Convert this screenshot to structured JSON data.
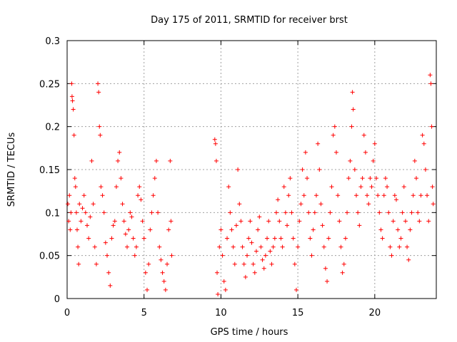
{
  "chart_data": {
    "type": "scatter",
    "title": "Day 175 of 2011, SRMTID for receiver brst",
    "xlabel": "GPS time / hours",
    "ylabel": "SRMTID / TECUs",
    "xlim": [
      0,
      24
    ],
    "ylim": [
      0,
      0.3
    ],
    "grid": true,
    "marker": "+",
    "marker_color": "#ff0000",
    "x_ticks": [
      0,
      5,
      10,
      15,
      20
    ],
    "x_tick_labels": [
      "0",
      "5",
      "10",
      "15",
      "20"
    ],
    "y_ticks": [
      0,
      0.05,
      0.1,
      0.15,
      0.2,
      0.25,
      0.3
    ],
    "y_tick_labels": [
      "0",
      "0.05",
      "0.1",
      "0.15",
      "0.2",
      "0.25",
      "0.3"
    ],
    "series": [
      {
        "name": "SRMTID",
        "points": [
          [
            0.05,
            0.11
          ],
          [
            0.1,
            0.09
          ],
          [
            0.15,
            0.12
          ],
          [
            0.2,
            0.08
          ],
          [
            0.25,
            0.1
          ],
          [
            0.3,
            0.25
          ],
          [
            0.32,
            0.235
          ],
          [
            0.35,
            0.23
          ],
          [
            0.4,
            0.22
          ],
          [
            0.45,
            0.19
          ],
          [
            0.5,
            0.14
          ],
          [
            0.55,
            0.13
          ],
          [
            0.6,
            0.1
          ],
          [
            0.65,
            0.08
          ],
          [
            0.7,
            0.06
          ],
          [
            0.75,
            0.04
          ],
          [
            0.8,
            0.11
          ],
          [
            0.9,
            0.09
          ],
          [
            1.0,
            0.105
          ],
          [
            1.1,
            0.12
          ],
          [
            1.2,
            0.1
          ],
          [
            1.3,
            0.085
          ],
          [
            1.4,
            0.07
          ],
          [
            1.5,
            0.095
          ],
          [
            1.6,
            0.16
          ],
          [
            1.7,
            0.11
          ],
          [
            1.8,
            0.06
          ],
          [
            1.9,
            0.04
          ],
          [
            2.0,
            0.25
          ],
          [
            2.05,
            0.24
          ],
          [
            2.1,
            0.2
          ],
          [
            2.15,
            0.19
          ],
          [
            2.2,
            0.13
          ],
          [
            2.3,
            0.12
          ],
          [
            2.4,
            0.1
          ],
          [
            2.5,
            0.065
          ],
          [
            2.6,
            0.05
          ],
          [
            2.7,
            0.03
          ],
          [
            2.8,
            0.015
          ],
          [
            2.9,
            0.07
          ],
          [
            3.0,
            0.085
          ],
          [
            3.1,
            0.09
          ],
          [
            3.2,
            0.13
          ],
          [
            3.3,
            0.16
          ],
          [
            3.4,
            0.17
          ],
          [
            3.5,
            0.14
          ],
          [
            3.6,
            0.11
          ],
          [
            3.7,
            0.09
          ],
          [
            3.8,
            0.075
          ],
          [
            3.9,
            0.06
          ],
          [
            4.0,
            0.08
          ],
          [
            4.1,
            0.1
          ],
          [
            4.2,
            0.095
          ],
          [
            4.3,
            0.07
          ],
          [
            4.4,
            0.05
          ],
          [
            4.5,
            0.06
          ],
          [
            4.6,
            0.12
          ],
          [
            4.7,
            0.13
          ],
          [
            4.8,
            0.115
          ],
          [
            4.9,
            0.09
          ],
          [
            5.0,
            0.07
          ],
          [
            5.1,
            0.03
          ],
          [
            5.2,
            0.01
          ],
          [
            5.3,
            0.04
          ],
          [
            5.4,
            0.08
          ],
          [
            5.5,
            0.1
          ],
          [
            5.6,
            0.12
          ],
          [
            5.7,
            0.14
          ],
          [
            5.8,
            0.16
          ],
          [
            5.9,
            0.1
          ],
          [
            6.0,
            0.06
          ],
          [
            6.1,
            0.045
          ],
          [
            6.2,
            0.03
          ],
          [
            6.3,
            0.02
          ],
          [
            6.4,
            0.01
          ],
          [
            6.5,
            0.04
          ],
          [
            6.6,
            0.08
          ],
          [
            6.7,
            0.16
          ],
          [
            6.75,
            0.09
          ],
          [
            6.8,
            0.05
          ],
          [
            9.6,
            0.185
          ],
          [
            9.65,
            0.18
          ],
          [
            9.7,
            0.16
          ],
          [
            9.75,
            0.03
          ],
          [
            9.8,
            0.005
          ],
          [
            9.9,
            0.06
          ],
          [
            10.0,
            0.08
          ],
          [
            10.1,
            0.05
          ],
          [
            10.2,
            0.02
          ],
          [
            10.3,
            0.01
          ],
          [
            10.4,
            0.07
          ],
          [
            10.5,
            0.13
          ],
          [
            10.6,
            0.1
          ],
          [
            10.7,
            0.08
          ],
          [
            10.8,
            0.06
          ],
          [
            10.9,
            0.04
          ],
          [
            11.0,
            0.085
          ],
          [
            11.1,
            0.15
          ],
          [
            11.2,
            0.11
          ],
          [
            11.3,
            0.09
          ],
          [
            11.4,
            0.06
          ],
          [
            11.5,
            0.04
          ],
          [
            11.6,
            0.025
          ],
          [
            11.7,
            0.05
          ],
          [
            11.8,
            0.07
          ],
          [
            11.9,
            0.09
          ],
          [
            12.0,
            0.065
          ],
          [
            12.1,
            0.04
          ],
          [
            12.2,
            0.03
          ],
          [
            12.3,
            0.055
          ],
          [
            12.4,
            0.08
          ],
          [
            12.5,
            0.095
          ],
          [
            12.6,
            0.06
          ],
          [
            12.7,
            0.045
          ],
          [
            12.8,
            0.035
          ],
          [
            12.9,
            0.05
          ],
          [
            13.0,
            0.07
          ],
          [
            13.1,
            0.09
          ],
          [
            13.2,
            0.055
          ],
          [
            13.3,
            0.04
          ],
          [
            13.4,
            0.06
          ],
          [
            13.5,
            0.07
          ],
          [
            13.6,
            0.1
          ],
          [
            13.7,
            0.115
          ],
          [
            13.8,
            0.09
          ],
          [
            13.9,
            0.07
          ],
          [
            14.0,
            0.06
          ],
          [
            14.1,
            0.13
          ],
          [
            14.2,
            0.1
          ],
          [
            14.3,
            0.085
          ],
          [
            14.4,
            0.12
          ],
          [
            14.5,
            0.14
          ],
          [
            14.6,
            0.1
          ],
          [
            14.7,
            0.07
          ],
          [
            14.8,
            0.04
          ],
          [
            14.9,
            0.01
          ],
          [
            15.0,
            0.06
          ],
          [
            15.1,
            0.09
          ],
          [
            15.2,
            0.11
          ],
          [
            15.3,
            0.15
          ],
          [
            15.4,
            0.12
          ],
          [
            15.5,
            0.17
          ],
          [
            15.6,
            0.14
          ],
          [
            15.7,
            0.1
          ],
          [
            15.8,
            0.07
          ],
          [
            15.9,
            0.05
          ],
          [
            16.0,
            0.08
          ],
          [
            16.1,
            0.1
          ],
          [
            16.2,
            0.12
          ],
          [
            16.3,
            0.18
          ],
          [
            16.4,
            0.15
          ],
          [
            16.5,
            0.11
          ],
          [
            16.6,
            0.085
          ],
          [
            16.7,
            0.06
          ],
          [
            16.8,
            0.035
          ],
          [
            16.9,
            0.02
          ],
          [
            17.0,
            0.07
          ],
          [
            17.1,
            0.1
          ],
          [
            17.2,
            0.13
          ],
          [
            17.3,
            0.19
          ],
          [
            17.4,
            0.2
          ],
          [
            17.5,
            0.17
          ],
          [
            17.6,
            0.12
          ],
          [
            17.7,
            0.09
          ],
          [
            17.8,
            0.06
          ],
          [
            17.9,
            0.03
          ],
          [
            18.0,
            0.04
          ],
          [
            18.1,
            0.07
          ],
          [
            18.2,
            0.1
          ],
          [
            18.3,
            0.14
          ],
          [
            18.4,
            0.16
          ],
          [
            18.5,
            0.2
          ],
          [
            18.55,
            0.24
          ],
          [
            18.6,
            0.22
          ],
          [
            18.7,
            0.15
          ],
          [
            18.8,
            0.12
          ],
          [
            18.9,
            0.1
          ],
          [
            19.0,
            0.085
          ],
          [
            19.1,
            0.13
          ],
          [
            19.2,
            0.14
          ],
          [
            19.3,
            0.19
          ],
          [
            19.4,
            0.17
          ],
          [
            19.5,
            0.12
          ],
          [
            19.6,
            0.11
          ],
          [
            19.7,
            0.14
          ],
          [
            19.8,
            0.13
          ],
          [
            19.9,
            0.16
          ],
          [
            20.0,
            0.18
          ],
          [
            20.1,
            0.14
          ],
          [
            20.2,
            0.12
          ],
          [
            20.3,
            0.1
          ],
          [
            20.4,
            0.08
          ],
          [
            20.5,
            0.07
          ],
          [
            20.6,
            0.12
          ],
          [
            20.7,
            0.14
          ],
          [
            20.8,
            0.13
          ],
          [
            20.9,
            0.1
          ],
          [
            21.0,
            0.06
          ],
          [
            21.1,
            0.05
          ],
          [
            21.2,
            0.09
          ],
          [
            21.3,
            0.12
          ],
          [
            21.4,
            0.115
          ],
          [
            21.5,
            0.08
          ],
          [
            21.6,
            0.06
          ],
          [
            21.7,
            0.07
          ],
          [
            21.8,
            0.1
          ],
          [
            21.9,
            0.13
          ],
          [
            22.0,
            0.09
          ],
          [
            22.1,
            0.06
          ],
          [
            22.2,
            0.045
          ],
          [
            22.3,
            0.08
          ],
          [
            22.4,
            0.1
          ],
          [
            22.5,
            0.12
          ],
          [
            22.6,
            0.16
          ],
          [
            22.7,
            0.14
          ],
          [
            22.8,
            0.1
          ],
          [
            22.9,
            0.09
          ],
          [
            23.0,
            0.12
          ],
          [
            23.1,
            0.19
          ],
          [
            23.2,
            0.18
          ],
          [
            23.3,
            0.15
          ],
          [
            23.4,
            0.12
          ],
          [
            23.5,
            0.09
          ],
          [
            23.6,
            0.26
          ],
          [
            23.65,
            0.25
          ],
          [
            23.7,
            0.2
          ],
          [
            23.75,
            0.13
          ],
          [
            23.8,
            0.11
          ]
        ]
      }
    ]
  }
}
